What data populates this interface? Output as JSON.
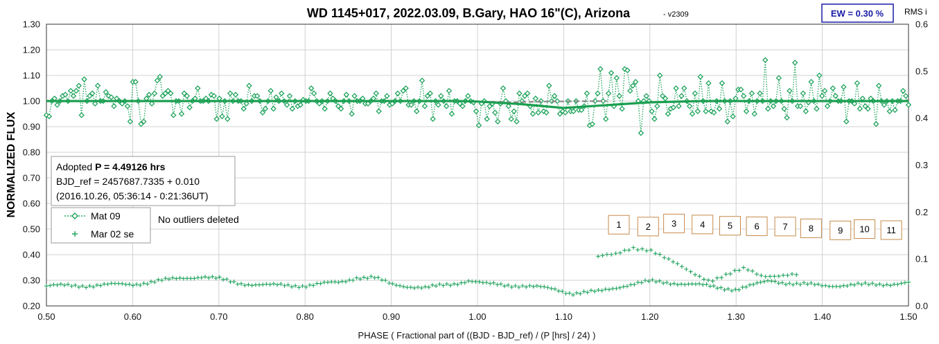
{
  "chart_data": {
    "type": "scatter",
    "title": "WD 1145+017, 2022.03.09, B.Gary, HAO 16\"(C), Arizona",
    "version": "- v2309",
    "ew_label": "EW = 0.30 %",
    "right_axis_title": "RMS i",
    "xlabel": "PHASE ( Fractional part of ((BJD - BJD_ref) / (P [hrs] / 24) )",
    "ylabel": "NORMALIZED FLUX",
    "xlim": [
      0.5,
      1.5
    ],
    "ylim": [
      0.2,
      1.3
    ],
    "y2lim": [
      0.0,
      0.6
    ],
    "x_ticks": [
      "0.50",
      "0.60",
      "0.70",
      "0.80",
      "0.90",
      "1.00",
      "1.10",
      "1.20",
      "1.30",
      "1.40",
      "1.50"
    ],
    "y_ticks": [
      "0.20",
      "0.30",
      "0.40",
      "0.50",
      "0.60",
      "0.70",
      "0.80",
      "0.90",
      "1.00",
      "1.10",
      "1.20",
      "1.30"
    ],
    "y2_ticks": [
      "0.0",
      "0.1",
      "0.2",
      "0.3",
      "0.4",
      "0.5",
      "0.6"
    ],
    "grid": true,
    "info_box": {
      "line1_prefix": "Adopted ",
      "line1_bold": "P = 4.49126 hrs",
      "line2": "BJD_ref = 2457687.7335 + 0.010",
      "line3": "(2016.10.26, 05:36:14 - 0:21:36UT)"
    },
    "legend": {
      "position": "left",
      "entries": [
        "Mat 09",
        "Mar 02 se"
      ]
    },
    "note": "No outliers deleted",
    "numbered_boxes": [
      {
        "label": "1",
        "x": 1.164,
        "y": 0.517
      },
      {
        "label": "2",
        "x": 1.198,
        "y": 0.51
      },
      {
        "label": "3",
        "x": 1.228,
        "y": 0.522
      },
      {
        "label": "4",
        "x": 1.261,
        "y": 0.518
      },
      {
        "label": "5",
        "x": 1.293,
        "y": 0.513
      },
      {
        "label": "6",
        "x": 1.324,
        "y": 0.511
      },
      {
        "label": "7",
        "x": 1.357,
        "y": 0.51
      },
      {
        "label": "8",
        "x": 1.387,
        "y": 0.503
      },
      {
        "label": "9",
        "x": 1.421,
        "y": 0.495
      },
      {
        "label": "10",
        "x": 1.449,
        "y": 0.5
      },
      {
        "label": "11",
        "x": 1.48,
        "y": 0.496
      }
    ],
    "colors": {
      "series": "#1fa35c",
      "model_line": "#1a9e4f",
      "dashed": "#8a8a8a",
      "box_border": "#c58a4a",
      "ew_border": "#1a1aa6"
    },
    "series": [
      {
        "name": "Mat 09",
        "marker": "diamond",
        "x_start": 0.5,
        "x_end": 1.5,
        "n": 301,
        "flux": [
          0.945,
          0.94,
          1.0,
          1.01,
          0.985,
          1.0,
          1.02,
          1.025,
          1.0,
          1.04,
          1.02,
          1.04,
          1.06,
          0.945,
          1.085,
          1.0,
          1.02,
          1.03,
          0.99,
          1.06,
          1.0,
          1.0,
          1.035,
          1.02,
          1.015,
          0.98,
          1.01,
          1.0,
          0.99,
          1.0,
          0.98,
          0.92,
          1.075,
          1.075,
          1.0,
          0.91,
          0.92,
          1.01,
          1.025,
          0.99,
          1.03,
          1.08,
          1.095,
          1.02,
          1.03,
          1.04,
          1.03,
          0.945,
          1.0,
          1.0,
          0.95,
          1.03,
          1.02,
          0.975,
          1.0,
          1.01,
          1.05,
          1.0,
          1.0,
          1.01,
          1.0,
          1.025,
          1.02,
          0.93,
          1.01,
          0.94,
          1.0,
          0.93,
          1.03,
          1.0,
          1.025,
          1.0,
          1.0,
          0.97,
          0.99,
          1.06,
          1.0,
          1.02,
          1.02,
          1.0,
          0.955,
          0.97,
          1.0,
          1.04,
          0.97,
          1.015,
          1.0,
          1.03,
          1.0,
          0.985,
          1.02,
          0.97,
          1.0,
          0.98,
          0.985,
          1.005,
          1.0,
          1.0,
          1.05,
          1.03,
          1.0,
          0.99,
          1.0,
          0.97,
          1.0,
          1.03,
          1.01,
          1.0,
          0.98,
          0.97,
          1.0,
          1.025,
          1.0,
          0.95,
          1.02,
          1.0,
          1.0,
          1.01,
          0.99,
          0.99,
          1.0,
          1.01,
          1.03,
          0.96,
          1.0,
          1.0,
          1.02,
          0.985,
          0.99,
          1.0,
          1.03,
          1.0,
          1.04,
          1.05,
          0.985,
          0.985,
          1.0,
          0.96,
          1.0,
          1.08,
          0.98,
          1.02,
          1.03,
          0.93,
          1.0,
          0.985,
          1.02,
          1.0,
          0.98,
          1.04,
          0.95,
          1.0,
          1.0,
          0.99,
          0.98,
          1.0,
          1.02,
          1.0,
          0.995,
          0.96,
          0.905,
          0.99,
          1.0,
          0.93,
          0.98,
          0.99,
          0.955,
          0.92,
          0.99,
          1.05,
          1.0,
          0.98,
          0.93,
          0.96,
          0.92,
          1.03,
          1.0,
          1.02,
          1.03,
          0.98,
          0.95,
          1.01,
          0.955,
          1.0,
          0.96,
          0.955,
          1.06,
          1.0,
          1.02,
          1.0,
          0.95,
          0.96,
          0.955,
          1.0,
          0.96,
          0.96,
          1.0,
          0.965,
          0.965,
          0.98,
          1.03,
          0.905,
          0.91,
          1.0,
          1.03,
          1.125,
          1.0,
          0.93,
          1.03,
          1.11,
          0.98,
          1.09,
          1.02,
          0.97,
          1.125,
          1.12,
          1.04,
          1.06,
          1.075,
          1.0,
          0.875,
          1.0,
          1.02,
          1.0,
          0.96,
          0.93,
          0.98,
          1.1,
          1.02,
          1.01,
          0.95,
          0.97,
          0.975,
          1.05,
          0.98,
          1.02,
          1.05,
          1.0,
          0.98,
          0.95,
          1.03,
          0.96,
          1.095,
          1.0,
          0.96,
          1.07,
          0.96,
          0.955,
          1.0,
          0.97,
          1.07,
          1.0,
          0.92,
          1.0,
          0.94,
          1.01,
          1.045,
          1.045,
          1.02,
          0.96,
          1.0,
          1.03,
          0.95,
          1.0,
          1.03,
          1.0,
          1.16,
          0.97,
          1.0,
          0.98,
          1.0,
          1.09,
          1.0,
          0.97,
          0.935,
          1.04,
          1.0,
          1.15,
          0.98,
          0.98,
          1.03,
          0.96,
          0.995,
          1.075,
          1.0,
          0.97,
          1.1,
          1.02,
          1.04,
          0.98,
          1.0,
          1.05,
          1.02,
          1.0,
          1.0,
          1.055,
          0.92,
          1.0,
          1.0,
          0.99,
          1.07,
          0.97,
          1.01,
          0.98,
          0.97,
          1.01,
          1.0,
          0.91,
          1.06,
          1.0,
          0.985,
          1.0,
          0.96,
          1.0,
          0.965,
          1.0,
          1.0,
          1.04,
          1.02,
          0.985
        ]
      },
      {
        "name": "Mar 02 se",
        "marker": "plus",
        "segments": [
          {
            "x_start": 0.5,
            "x_end": 1.5,
            "n": 240,
            "wave": [
              [
                0.5,
                0.278
              ],
              [
                0.55,
                0.28
              ],
              [
                0.6,
                0.285
              ],
              [
                0.63,
                0.297
              ],
              [
                0.66,
                0.31
              ],
              [
                0.68,
                0.315
              ],
              [
                0.7,
                0.305
              ],
              [
                0.72,
                0.29
              ],
              [
                0.76,
                0.28
              ],
              [
                0.8,
                0.28
              ],
              [
                0.84,
                0.292
              ],
              [
                0.86,
                0.312
              ],
              [
                0.88,
                0.31
              ],
              [
                0.9,
                0.285
              ],
              [
                0.94,
                0.27
              ],
              [
                0.97,
                0.285
              ],
              [
                0.99,
                0.3
              ],
              [
                1.01,
                0.285
              ],
              [
                1.05,
                0.28
              ],
              [
                1.09,
                0.265
              ],
              [
                1.11,
                0.25
              ],
              [
                1.14,
                0.255
              ],
              [
                1.17,
                0.28
              ],
              [
                1.2,
                0.295
              ],
              [
                1.23,
                0.29
              ],
              [
                1.26,
                0.28
              ],
              [
                1.3,
                0.265
              ],
              [
                1.32,
                0.28
              ],
              [
                1.34,
                0.3
              ],
              [
                1.37,
                0.285
              ],
              [
                1.4,
                0.28
              ],
              [
                1.45,
                0.282
              ],
              [
                1.5,
                0.29
              ]
            ]
          },
          {
            "x_start": 1.14,
            "x_end": 1.37,
            "n": 46,
            "wave": [
              [
                1.14,
                0.39
              ],
              [
                1.16,
                0.4
              ],
              [
                1.18,
                0.43
              ],
              [
                1.2,
                0.42
              ],
              [
                1.22,
                0.38
              ],
              [
                1.25,
                0.33
              ],
              [
                1.27,
                0.3
              ],
              [
                1.29,
                0.32
              ],
              [
                1.31,
                0.345
              ],
              [
                1.33,
                0.32
              ],
              [
                1.37,
                0.32
              ]
            ]
          }
        ]
      }
    ],
    "model_curve": [
      [
        0.5,
        1.0
      ],
      [
        0.98,
        1.0
      ],
      [
        1.0,
        0.998
      ],
      [
        1.05,
        0.988
      ],
      [
        1.1,
        0.973
      ],
      [
        1.14,
        0.982
      ],
      [
        1.2,
        0.995
      ],
      [
        1.26,
        1.0
      ],
      [
        1.5,
        1.0
      ]
    ],
    "dashed_curve": [
      [
        0.98,
        1.0
      ],
      [
        1.04,
        0.995
      ],
      [
        1.08,
        0.998
      ],
      [
        1.15,
        1.0
      ]
    ]
  }
}
